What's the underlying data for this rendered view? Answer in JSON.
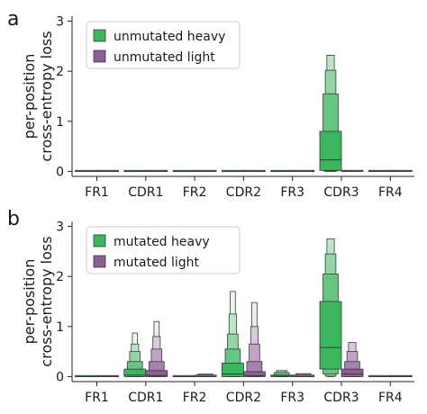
{
  "colors": {
    "heavy": "#3cb55f",
    "light": "#8c5f94",
    "outline": "#3a3a3a",
    "axis": "#222222"
  },
  "chart_data": [
    {
      "panel_label": "a",
      "type": "boxen",
      "ylabel": "per-position\ncross-entropy loss",
      "ylim": [
        -0.1,
        3.1
      ],
      "yticks": [
        0,
        1,
        2,
        3
      ],
      "categories": [
        "FR1",
        "CDR1",
        "FR2",
        "CDR2",
        "FR3",
        "CDR3",
        "FR4"
      ],
      "legend_position": "top-left",
      "series": [
        {
          "name": "unmutated heavy",
          "color_key": "heavy",
          "values": [
            {
              "median": 0,
              "levels": [
                [
                  0,
                  0
                ]
              ],
              "outliers": []
            },
            {
              "median": 0,
              "levels": [
                [
                  0,
                  0
                ]
              ],
              "outliers": []
            },
            {
              "median": 0,
              "levels": [
                [
                  0,
                  0
                ]
              ],
              "outliers": []
            },
            {
              "median": 0,
              "levels": [
                [
                  0,
                  0
                ]
              ],
              "outliers": []
            },
            {
              "median": 0,
              "levels": [
                [
                  0,
                  0
                ]
              ],
              "outliers": []
            },
            {
              "median": 0.23,
              "levels": [
                [
                  0.02,
                  0.8
                ],
                [
                  0.01,
                  1.55
                ],
                [
                  0.0,
                  2.02
                ],
                [
                  0.0,
                  2.32
                ]
              ],
              "outliers": []
            },
            {
              "median": 0,
              "levels": [
                [
                  0,
                  0
                ]
              ],
              "outliers": []
            }
          ]
        },
        {
          "name": "unmutated light",
          "color_key": "light",
          "values": [
            {
              "median": 0,
              "levels": [
                [
                  0,
                  0
                ]
              ],
              "outliers": []
            },
            {
              "median": 0,
              "levels": [
                [
                  0,
                  0
                ]
              ],
              "outliers": []
            },
            {
              "median": 0,
              "levels": [
                [
                  0,
                  0
                ]
              ],
              "outliers": []
            },
            {
              "median": 0,
              "levels": [
                [
                  0,
                  0
                ]
              ],
              "outliers": []
            },
            {
              "median": 0,
              "levels": [
                [
                  0,
                  0
                ]
              ],
              "outliers": []
            },
            {
              "median": 0,
              "levels": [
                [
                  0,
                  0
                ]
              ],
              "outliers": []
            },
            {
              "median": 0,
              "levels": [
                [
                  0,
                  0
                ]
              ],
              "outliers": []
            }
          ]
        }
      ]
    },
    {
      "panel_label": "b",
      "type": "boxen",
      "ylabel": "per-position\ncross-entropy loss",
      "ylim": [
        -0.1,
        3.1
      ],
      "yticks": [
        0,
        1,
        2,
        3
      ],
      "categories": [
        "FR1",
        "CDR1",
        "FR2",
        "CDR2",
        "FR3",
        "CDR3",
        "FR4"
      ],
      "legend_position": "top-left",
      "series": [
        {
          "name": "mutated heavy",
          "color_key": "heavy",
          "values": [
            {
              "median": 0.0,
              "levels": [
                [
                  0.0,
                  0.02
                ]
              ],
              "outliers": []
            },
            {
              "median": 0.03,
              "levels": [
                [
                  0.0,
                  0.15
                ],
                [
                  0.0,
                  0.3
                ],
                [
                  0.0,
                  0.5
                ],
                [
                  0.0,
                  0.65
                ],
                [
                  0.0,
                  0.87
                ]
              ],
              "outliers": []
            },
            {
              "median": 0.0,
              "levels": [
                [
                  0.0,
                  0.02
                ]
              ],
              "outliers": []
            },
            {
              "median": 0.05,
              "levels": [
                [
                  0.0,
                  0.27
                ],
                [
                  0.0,
                  0.55
                ],
                [
                  0.0,
                  0.85
                ],
                [
                  0.0,
                  1.25
                ],
                [
                  0.0,
                  1.7
                ]
              ],
              "outliers": []
            },
            {
              "median": 0.01,
              "levels": [
                [
                  0.0,
                  0.03
                ],
                [
                  0.0,
                  0.08
                ],
                [
                  0.0,
                  0.12
                ]
              ],
              "outliers": []
            },
            {
              "median": 0.58,
              "levels": [
                [
                  0.15,
                  1.5
                ],
                [
                  0.05,
                  2.05
                ],
                [
                  0.01,
                  2.45
                ],
                [
                  0.0,
                  2.75
                ]
              ],
              "outliers": []
            },
            {
              "median": 0.0,
              "levels": [
                [
                  0.0,
                  0.02
                ]
              ],
              "outliers": []
            }
          ]
        },
        {
          "name": "mutated light",
          "color_key": "light",
          "values": [
            {
              "median": 0.0,
              "levels": [
                [
                  0.0,
                  0.02
                ]
              ],
              "outliers": []
            },
            {
              "median": 0.02,
              "levels": [
                [
                  0.0,
                  0.12
                ],
                [
                  0.0,
                  0.3
                ],
                [
                  0.0,
                  0.55
                ],
                [
                  0.0,
                  0.8
                ],
                [
                  0.0,
                  1.1
                ]
              ],
              "outliers": []
            },
            {
              "median": 0.0,
              "levels": [
                [
                  0.0,
                  0.03
                ],
                [
                  0.0,
                  0.05
                ]
              ],
              "outliers": []
            },
            {
              "median": 0.02,
              "levels": [
                [
                  0.0,
                  0.1
                ],
                [
                  0.0,
                  0.3
                ],
                [
                  0.0,
                  0.65
                ],
                [
                  0.0,
                  1.0
                ],
                [
                  0.0,
                  1.48
                ]
              ],
              "outliers": []
            },
            {
              "median": 0.0,
              "levels": [
                [
                  0.0,
                  0.03
                ],
                [
                  0.0,
                  0.06
                ]
              ],
              "outliers": []
            },
            {
              "median": 0.05,
              "levels": [
                [
                  0.0,
                  0.15
                ],
                [
                  0.0,
                  0.3
                ],
                [
                  0.0,
                  0.5
                ],
                [
                  0.0,
                  0.68
                ]
              ],
              "outliers": []
            },
            {
              "median": 0.0,
              "levels": [
                [
                  0.0,
                  0.02
                ]
              ],
              "outliers": []
            }
          ]
        }
      ]
    }
  ]
}
